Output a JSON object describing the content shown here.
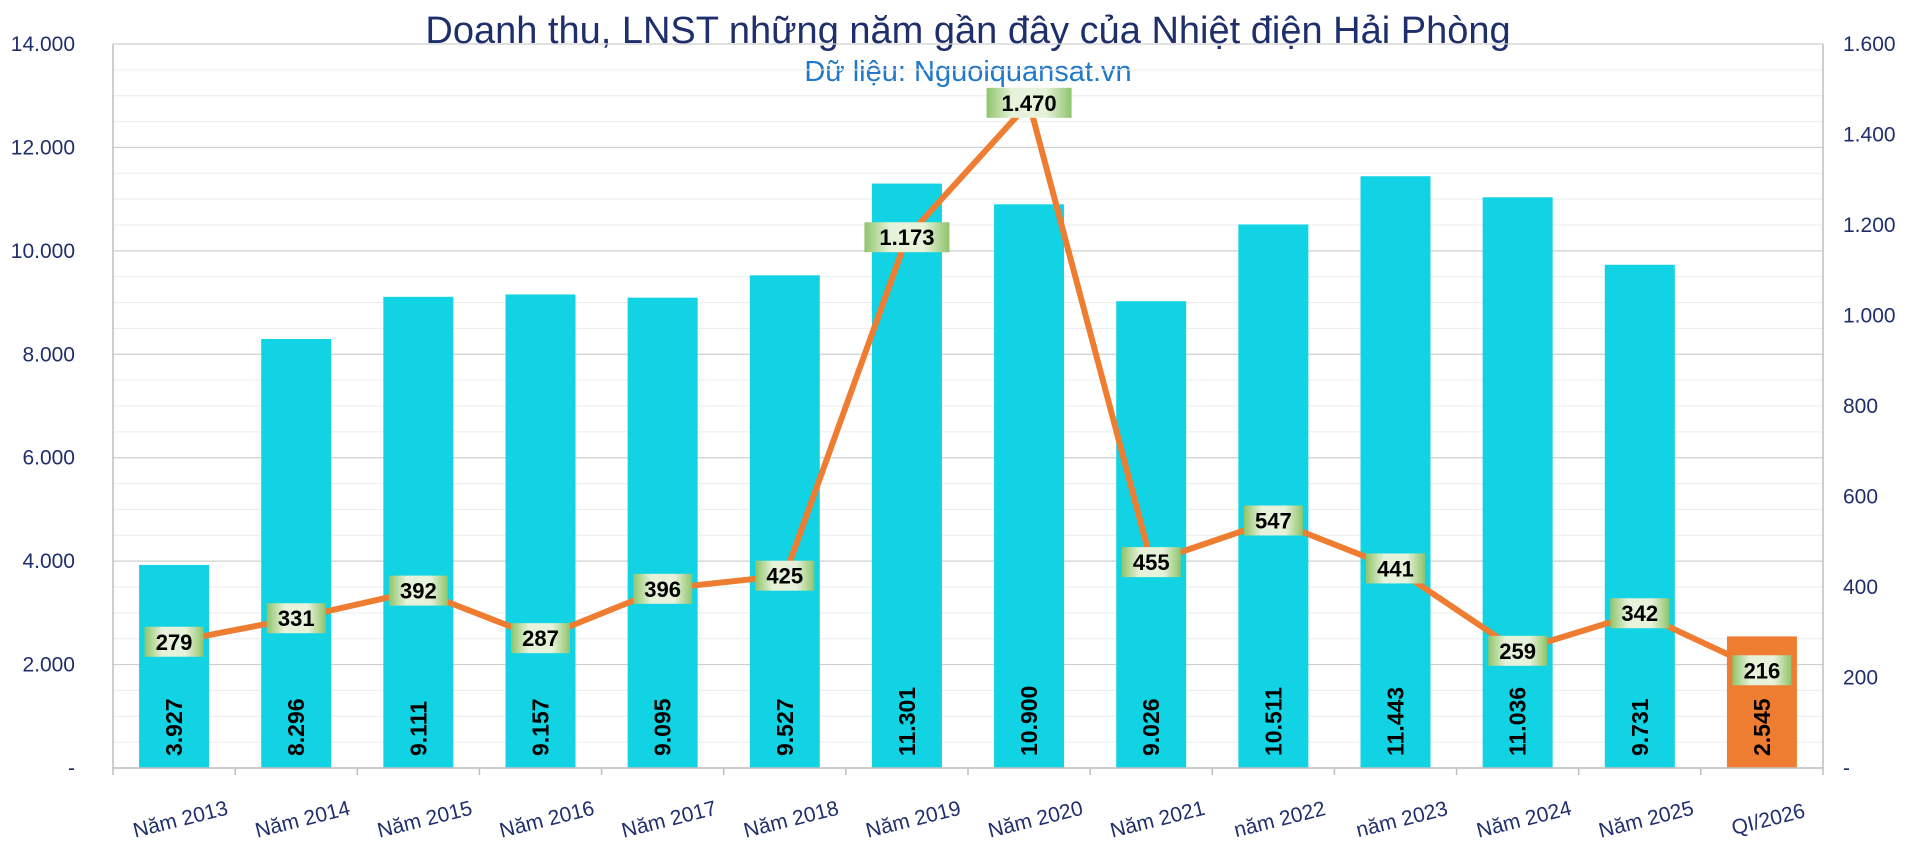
{
  "chart_data": {
    "type": "bar",
    "title": "Doanh thu, LNST những năm gần đây của Nhiệt điện Hải Phòng",
    "subtitle": "Dữ liệu: Nguoiquansat.vn",
    "categories": [
      "Năm 2013",
      "Năm 2014",
      "Năm 2015",
      "Năm 2016",
      "Năm 2017",
      "Năm 2018",
      "Năm 2019",
      "Năm 2020",
      "Năm 2021",
      "năm 2022",
      "năm 2023",
      "Năm 2024",
      "Năm 2025",
      "QI/2026"
    ],
    "series": [
      {
        "type": "bar",
        "axis": "left",
        "values": [
          3927,
          8296,
          9111,
          9157,
          9095,
          9527,
          11301,
          10900,
          9026,
          10511,
          11443,
          11036,
          9731,
          2545
        ],
        "labels": [
          "3.927",
          "8.296",
          "9.111",
          "9.157",
          "9.095",
          "9.527",
          "11.301",
          "10.900",
          "9.026",
          "10.511",
          "11.443",
          "11.036",
          "9.731",
          "2.545"
        ],
        "color": "#11d3e3",
        "highlight_color": "#ef7d31",
        "highlight_index": 13
      },
      {
        "type": "line",
        "axis": "right",
        "values": [
          279,
          331,
          392,
          287,
          396,
          425,
          1173,
          1470,
          455,
          547,
          441,
          259,
          342,
          216
        ],
        "labels": [
          "279",
          "331",
          "392",
          "287",
          "396",
          "425",
          "1.173",
          "1.470",
          "455",
          "547",
          "441",
          "259",
          "342",
          "216"
        ],
        "color": "#ef7d31"
      }
    ],
    "y_left": {
      "range": [
        0,
        14000
      ],
      "ticks": [
        "-",
        "2.000",
        "4.000",
        "6.000",
        "8.000",
        "10.000",
        "12.000",
        "14.000"
      ]
    },
    "y_right": {
      "range": [
        0,
        1600
      ],
      "ticks": [
        "-",
        "200",
        "400",
        "600",
        "800",
        "1.000",
        "1.200",
        "1.400",
        "1.600"
      ]
    },
    "grid": true,
    "legend": "none"
  }
}
